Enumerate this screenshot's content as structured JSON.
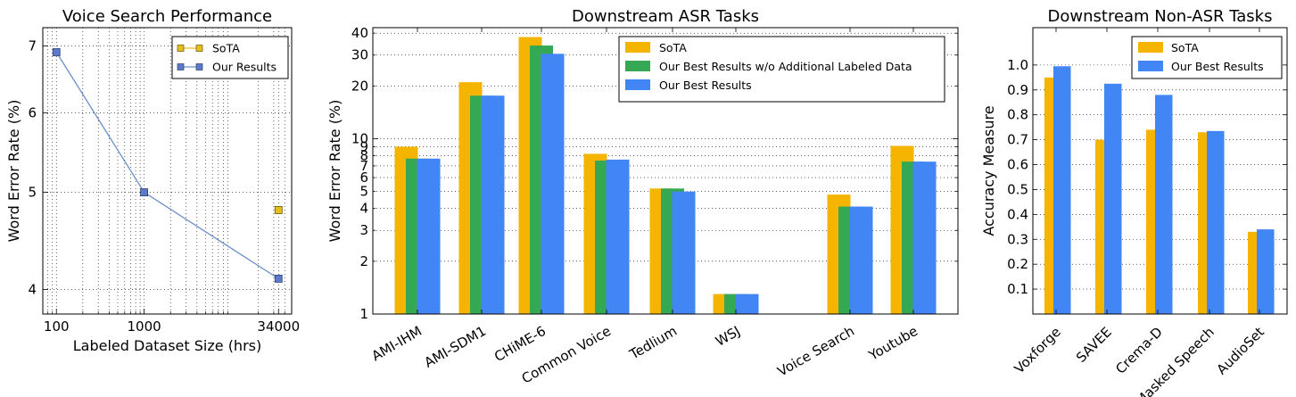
{
  "colors": {
    "sota": "#F4B400",
    "sota_edge": "#D9A000",
    "green": "#34A853",
    "blue": "#4285F4",
    "line": "#6D8FC9",
    "marker_blue": "#5B7BC9",
    "marker_gold": "#E5BF20"
  },
  "chart_data": [
    {
      "type": "line",
      "title": "Voice Search Performance",
      "xlabel": "Labeled Dataset Size (hrs)",
      "ylabel": "Word Error Rate (%)",
      "xscale": "log",
      "yscale": "log",
      "xlim": [
        70,
        48000
      ],
      "ylim": [
        3.78,
        7.3
      ],
      "xticks": [
        100,
        1000,
        34000
      ],
      "xtick_labels": [
        "100",
        "1000",
        "34000"
      ],
      "yticks": [
        4,
        5,
        6,
        7
      ],
      "ytick_labels": [
        "4",
        "5",
        "6",
        "7"
      ],
      "grid": true,
      "legend_position": "top-right",
      "series": [
        {
          "name": "SoTA",
          "x": [
            34000
          ],
          "y": [
            4.8
          ]
        },
        {
          "name": "Our Results",
          "x": [
            100,
            1000,
            34000
          ],
          "y": [
            6.9,
            5.0,
            4.1
          ]
        }
      ]
    },
    {
      "type": "bar",
      "title": "Downstream ASR Tasks",
      "ylabel": "Word Error Rate (%)",
      "yscale": "log",
      "ylim": [
        1,
        43
      ],
      "yticks": [
        1,
        2,
        3,
        4,
        5,
        6,
        7,
        8,
        9,
        10,
        20,
        30,
        40
      ],
      "ytick_labels": [
        "1",
        "2",
        "3",
        "4",
        "5",
        "6",
        "7",
        "8",
        "9",
        "10",
        "20",
        "30",
        "40"
      ],
      "grid": true,
      "legend_position": "top-right",
      "categories": [
        "AMI-IHM",
        "AMI-SDM1",
        "CHiME-6",
        "Common Voice",
        "Tedlium",
        "WSJ",
        "Voice Search",
        "Youtube"
      ],
      "series": [
        {
          "name": "SoTA",
          "values": [
            9.0,
            21.0,
            38.0,
            8.2,
            5.2,
            1.3,
            4.8,
            9.1
          ]
        },
        {
          "name": "Our Best Results w/o Additional Labeled Data",
          "values": [
            7.7,
            17.6,
            34.0,
            7.5,
            5.2,
            1.3,
            4.1,
            7.4
          ]
        },
        {
          "name": "Our Best Results",
          "values": [
            7.7,
            17.6,
            30.5,
            7.6,
            5.0,
            1.3,
            4.1,
            7.4
          ]
        }
      ]
    },
    {
      "type": "bar",
      "title": "Downstream Non-ASR Tasks",
      "ylabel": "Accuracy Measure",
      "ylim": [
        0,
        1.15
      ],
      "yticks": [
        0.1,
        0.2,
        0.3,
        0.4,
        0.5,
        0.6,
        0.7,
        0.8,
        0.9,
        1.0
      ],
      "ytick_labels": [
        "0.1",
        "0.2",
        "0.3",
        "0.4",
        "0.5",
        "0.6",
        "0.7",
        "0.8",
        "0.9",
        "1.0"
      ],
      "grid": true,
      "legend_position": "top-right",
      "categories": [
        "Voxforge",
        "SAVEE",
        "Crema-D",
        "Masked Speech",
        "AudioSet"
      ],
      "series": [
        {
          "name": "SoTA",
          "values": [
            0.95,
            0.7,
            0.74,
            0.73,
            0.33
          ]
        },
        {
          "name": "Our Best Results",
          "values": [
            0.995,
            0.925,
            0.88,
            0.735,
            0.34
          ]
        }
      ]
    }
  ]
}
